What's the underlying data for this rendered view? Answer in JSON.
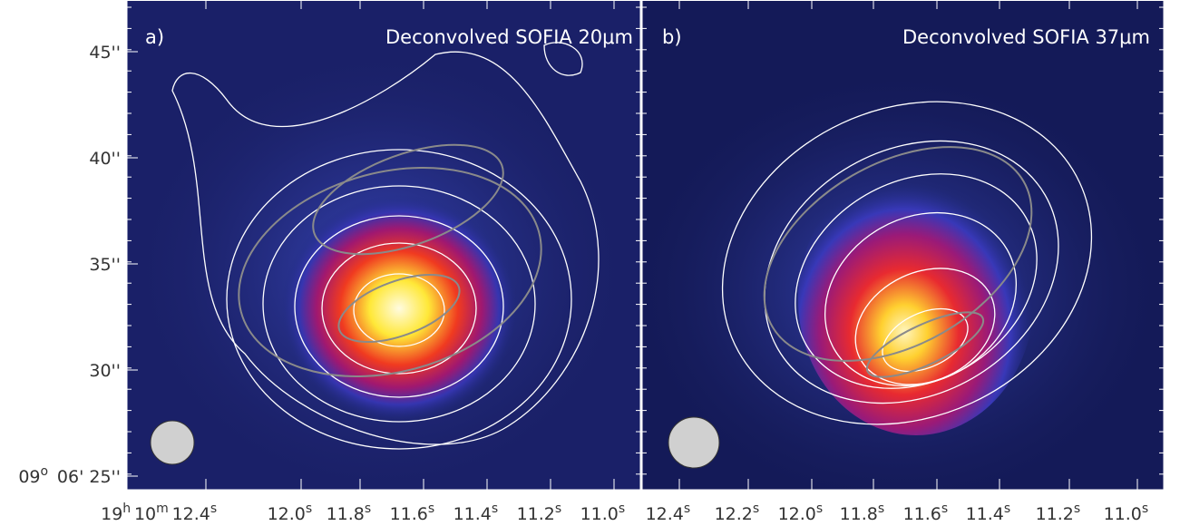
{
  "panels": [
    {
      "label": "a)",
      "title": "Deconvolved SOFIA 20μm",
      "x_ticks": [
        [
          {
            "text": "19",
            "sup": "h"
          },
          {
            "text": "10",
            "sup": "m"
          },
          {
            "text": "12.4",
            "sup": "s"
          }
        ],
        [
          {
            "text": "12.0",
            "sup": "s"
          }
        ],
        [
          {
            "text": "11.8",
            "sup": "s"
          }
        ],
        [
          {
            "text": "11.6",
            "sup": "s"
          }
        ],
        [
          {
            "text": "11.4",
            "sup": "s"
          }
        ],
        [
          {
            "text": "11.2",
            "sup": "s"
          }
        ],
        [
          {
            "text": "11.0",
            "sup": "s"
          }
        ]
      ]
    },
    {
      "label": "b)",
      "title": "Deconvolved SOFIA 37μm",
      "x_ticks": [
        [
          {
            "text": "12.4",
            "sup": "s"
          }
        ],
        [
          {
            "text": "12.2",
            "sup": "s"
          }
        ],
        [
          {
            "text": "12.0",
            "sup": "s"
          }
        ],
        [
          {
            "text": "11.8",
            "sup": "s"
          }
        ],
        [
          {
            "text": "11.6",
            "sup": "s"
          }
        ],
        [
          {
            "text": "11.4",
            "sup": "s"
          }
        ],
        [
          {
            "text": "11.2",
            "sup": "s"
          }
        ],
        [
          {
            "text": "11.0",
            "sup": "s"
          }
        ]
      ]
    }
  ],
  "y_ticks": [
    [
      {
        "text": "45''"
      }
    ],
    [
      {
        "text": "40''"
      }
    ],
    [
      {
        "text": "35''"
      }
    ],
    [
      {
        "text": "30''"
      }
    ],
    [
      {
        "text": "09",
        "sup": "o"
      },
      {
        "text": " 06'"
      },
      {
        "text": " 25''"
      }
    ]
  ]
}
